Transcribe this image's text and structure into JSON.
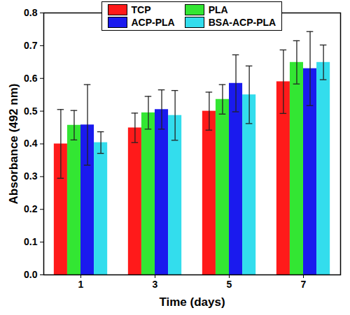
{
  "chart_data": {
    "type": "bar",
    "x_label": "Time (days)",
    "y_label": "Absorbance (492 nm)",
    "categories": [
      "1",
      "3",
      "5",
      "7"
    ],
    "series": [
      {
        "name": "TCP",
        "color": "#ff1a1a",
        "values": [
          0.4,
          0.449,
          0.5,
          0.59
        ],
        "errors": [
          0.105,
          0.045,
          0.058,
          0.097
        ]
      },
      {
        "name": "PLA",
        "color": "#33e633",
        "values": [
          0.457,
          0.495,
          0.536,
          0.649
        ],
        "errors": [
          0.045,
          0.05,
          0.045,
          0.066
        ]
      },
      {
        "name": "ACP-PLA",
        "color": "#1a1aee",
        "values": [
          0.458,
          0.505,
          0.585,
          0.63
        ],
        "errors": [
          0.123,
          0.06,
          0.087,
          0.113
        ]
      },
      {
        "name": "BSA-ACP-PLA",
        "color": "#33dded",
        "values": [
          0.404,
          0.487,
          0.55,
          0.649
        ],
        "errors": [
          0.033,
          0.076,
          0.088,
          0.053
        ]
      }
    ],
    "ylim": [
      0,
      0.8
    ],
    "yticks": [
      {
        "value": 0,
        "label": "0.0"
      },
      0.1,
      0.2,
      0.3,
      0.4,
      0.5,
      0.6,
      0.7,
      0.8
    ],
    "legend": "top",
    "grid": false
  }
}
